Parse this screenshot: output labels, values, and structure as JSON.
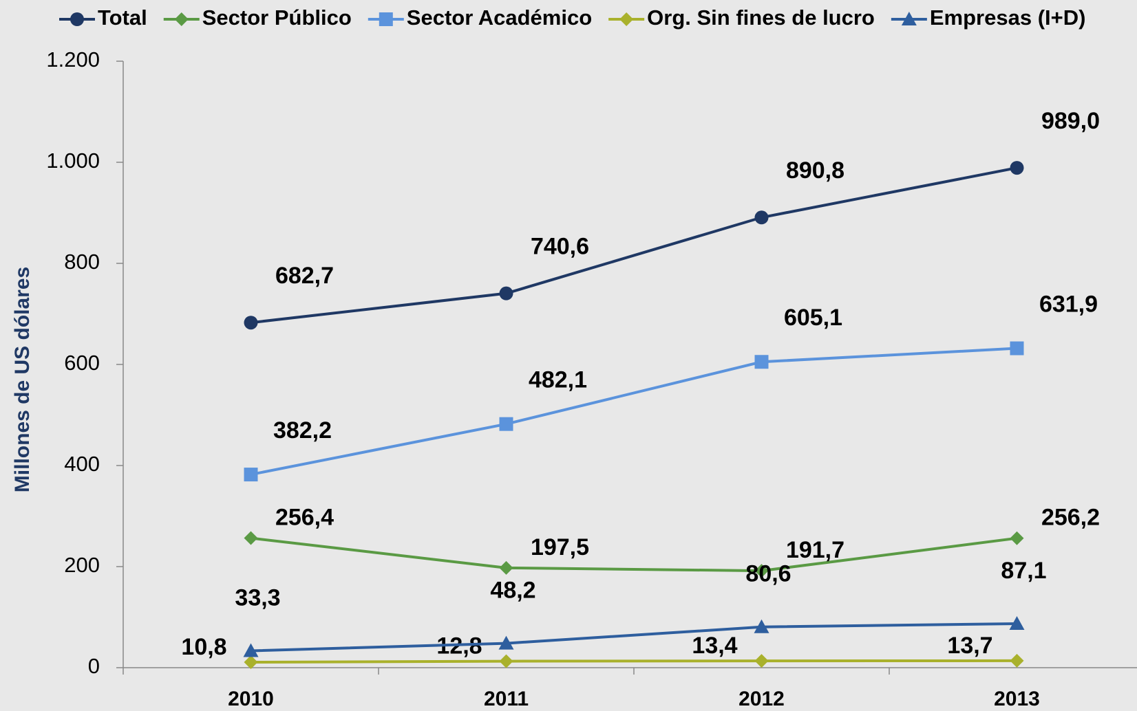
{
  "chart_data": {
    "type": "line",
    "y_label": "Millones de US dólares",
    "categories": [
      "2010",
      "2011",
      "2012",
      "2013"
    ],
    "series": [
      {
        "name": "Total",
        "color": "#1f3864",
        "marker": "circle",
        "values": [
          682.7,
          740.6,
          890.8,
          989.0
        ],
        "value_labels": [
          "682,7",
          "740,6",
          "890,8",
          "989,0"
        ]
      },
      {
        "name": "Sector Público",
        "color": "#5a9a44",
        "marker": "diamond",
        "values": [
          256.4,
          197.5,
          191.7,
          256.2
        ],
        "value_labels": [
          "256,4",
          "197,5",
          "191,7",
          "256,2"
        ]
      },
      {
        "name": "Sector Académico",
        "color": "#5b93dc",
        "marker": "square",
        "values": [
          382.2,
          482.1,
          605.1,
          631.9
        ],
        "value_labels": [
          "382,2",
          "482,1",
          "605,1",
          "631,9"
        ]
      },
      {
        "name": "Org. Sin fines de lucro",
        "color": "#a9b12c",
        "marker": "diamond",
        "values": [
          10.8,
          12.8,
          13.4,
          13.7
        ],
        "value_labels": [
          "10,8",
          "12,8",
          "13,4",
          "13,7"
        ]
      },
      {
        "name": "Empresas (I+D)",
        "color": "#2e5e9e",
        "marker": "triangle",
        "values": [
          33.3,
          48.2,
          80.6,
          87.1
        ],
        "value_labels": [
          "33,3",
          "48,2",
          "80,6",
          "87,1"
        ]
      }
    ],
    "ylim": [
      0,
      1200
    ],
    "yticks": [
      0,
      200,
      400,
      600,
      800,
      {
        "value": 1000,
        "label": "1.000"
      },
      {
        "value": 1200,
        "label": "1.200"
      }
    ],
    "legend": "top"
  }
}
